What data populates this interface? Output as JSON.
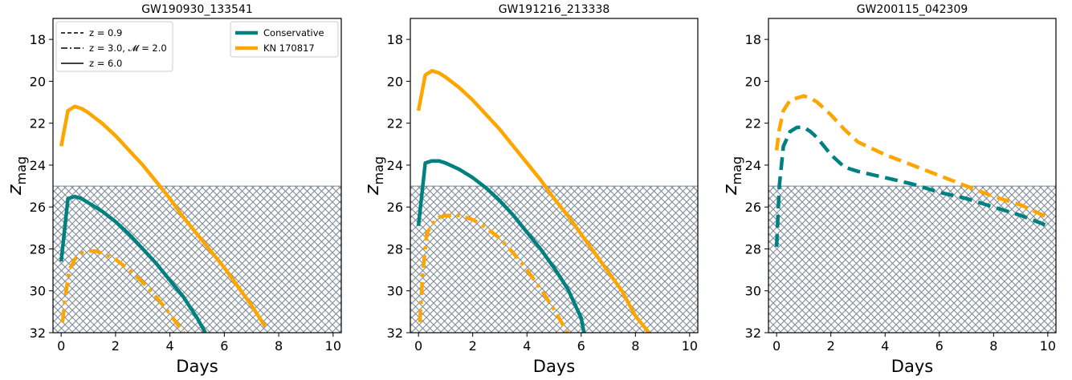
{
  "chart_data": [
    {
      "type": "line",
      "title": "GW190930_133541",
      "xlabel": "Days",
      "ylabel": "z_mag",
      "xlim": [
        -0.3,
        10.3
      ],
      "ylim": [
        32,
        17
      ],
      "y_inverted": true,
      "xticks": [
        "0",
        "2",
        "4",
        "6",
        "8",
        "10"
      ],
      "yticks": [
        "18",
        "20",
        "22",
        "24",
        "26",
        "28",
        "30",
        "32"
      ],
      "hatch_region": {
        "ymin": 25,
        "ymax": 32
      },
      "series": [
        {
          "name": "KN 170817",
          "color": "#ffa500",
          "style": "solid",
          "x": [
            0,
            0.25,
            0.5,
            0.75,
            1,
            1.5,
            2,
            2.5,
            3,
            3.5,
            4,
            4.5,
            5,
            5.5,
            6,
            6.5,
            7,
            7.5
          ],
          "y": [
            23.1,
            21.4,
            21.2,
            21.3,
            21.5,
            22.0,
            22.6,
            23.3,
            24.0,
            24.8,
            25.6,
            26.5,
            27.3,
            28.1,
            28.9,
            29.8,
            30.7,
            31.7
          ]
        },
        {
          "name": "Conservative",
          "color": "#008080",
          "style": "solid",
          "x": [
            0,
            0.25,
            0.5,
            0.75,
            1,
            1.5,
            2,
            2.5,
            3,
            3.5,
            4,
            4.5,
            5,
            5.3
          ],
          "y": [
            28.6,
            25.6,
            25.5,
            25.6,
            25.8,
            26.2,
            26.7,
            27.3,
            28.0,
            28.7,
            29.5,
            30.3,
            31.3,
            32.0
          ]
        },
        {
          "color": "#ffa500",
          "style": "dashdot",
          "x": [
            0.05,
            0.15,
            0.3,
            0.5,
            0.75,
            1,
            1.25,
            1.5,
            2,
            2.5,
            3,
            3.5,
            4,
            4.5
          ],
          "y": [
            31.5,
            30.3,
            29.0,
            28.5,
            28.2,
            28.1,
            28.1,
            28.2,
            28.5,
            29.0,
            29.6,
            30.3,
            31.1,
            32.0
          ]
        }
      ],
      "legend_linestyles": [
        {
          "label": "z = 0.9",
          "style": "dashed"
        },
        {
          "label": "z = 3.0, 𝓜 = 2.0",
          "style": "dashdot"
        },
        {
          "label": "z = 6.0",
          "style": "solid"
        }
      ],
      "legend_colors": [
        {
          "label": "Conservative",
          "color": "#008080"
        },
        {
          "label": "KN 170817",
          "color": "#ffa500"
        }
      ]
    },
    {
      "type": "line",
      "title": "GW191216_213338",
      "xlabel": "Days",
      "ylabel": "z_mag",
      "xlim": [
        -0.3,
        10.3
      ],
      "ylim": [
        32,
        17
      ],
      "y_inverted": true,
      "xticks": [
        "0",
        "2",
        "4",
        "6",
        "8",
        "10"
      ],
      "yticks": [
        "18",
        "20",
        "22",
        "24",
        "26",
        "28",
        "30",
        "32"
      ],
      "hatch_region": {
        "ymin": 25,
        "ymax": 32
      },
      "series": [
        {
          "name": "KN 170817",
          "color": "#ffa500",
          "style": "solid",
          "x": [
            0,
            0.25,
            0.5,
            0.75,
            1,
            1.5,
            2,
            2.5,
            3,
            3.5,
            4,
            4.5,
            5,
            5.5,
            6,
            6.5,
            7,
            7.5,
            8,
            8.5
          ],
          "y": [
            21.4,
            19.7,
            19.5,
            19.6,
            19.8,
            20.3,
            20.9,
            21.6,
            22.3,
            23.1,
            23.9,
            24.7,
            25.6,
            26.4,
            27.3,
            28.2,
            29.1,
            30.0,
            31.2,
            32.0
          ]
        },
        {
          "name": "Conservative",
          "color": "#008080",
          "style": "solid",
          "x": [
            0,
            0.25,
            0.5,
            0.75,
            1,
            1.5,
            2,
            2.5,
            3,
            3.5,
            4,
            4.5,
            5,
            5.5,
            6,
            6.1
          ],
          "y": [
            26.9,
            23.9,
            23.8,
            23.8,
            23.9,
            24.2,
            24.6,
            25.1,
            25.7,
            26.4,
            27.2,
            28.0,
            28.9,
            29.9,
            31.3,
            32.0
          ]
        },
        {
          "color": "#ffa500",
          "style": "dashdot",
          "x": [
            0.05,
            0.15,
            0.3,
            0.5,
            0.75,
            1,
            1.5,
            2,
            2.5,
            3,
            3.5,
            4,
            4.5,
            5,
            5.5
          ],
          "y": [
            31.5,
            29.3,
            27.3,
            26.8,
            26.5,
            26.4,
            26.4,
            26.6,
            27.0,
            27.5,
            28.2,
            29.0,
            29.9,
            30.9,
            32.0
          ]
        }
      ]
    },
    {
      "type": "line",
      "title": "GW200115_042309",
      "xlabel": "Days",
      "ylabel": "z_mag",
      "xlim": [
        -0.3,
        10.3
      ],
      "ylim": [
        32,
        17
      ],
      "y_inverted": true,
      "xticks": [
        "0",
        "2",
        "4",
        "6",
        "8",
        "10"
      ],
      "yticks": [
        "18",
        "20",
        "22",
        "24",
        "26",
        "28",
        "30",
        "32"
      ],
      "hatch_region": {
        "ymin": 25,
        "ymax": 32
      },
      "series": [
        {
          "name": "KN 170817",
          "color": "#ffa500",
          "style": "dashed",
          "x": [
            0,
            0.1,
            0.25,
            0.5,
            0.75,
            1,
            1.25,
            1.5,
            2,
            2.5,
            3,
            4,
            5,
            6,
            7,
            8,
            9,
            10
          ],
          "y": [
            23.3,
            22.3,
            21.4,
            20.9,
            20.8,
            20.7,
            20.8,
            21.0,
            21.6,
            22.3,
            22.9,
            23.5,
            24.0,
            24.5,
            25.0,
            25.5,
            25.9,
            26.5
          ]
        },
        {
          "name": "Conservative",
          "color": "#008080",
          "style": "dashed",
          "x": [
            0,
            0.1,
            0.25,
            0.5,
            0.75,
            1,
            1.25,
            1.5,
            2,
            2.5,
            3,
            4,
            5,
            6,
            7,
            8,
            9,
            10
          ],
          "y": [
            27.9,
            25.0,
            23.1,
            22.4,
            22.2,
            22.2,
            22.4,
            22.7,
            23.5,
            24.1,
            24.3,
            24.6,
            24.9,
            25.3,
            25.6,
            26.0,
            26.4,
            26.9
          ]
        }
      ]
    }
  ]
}
